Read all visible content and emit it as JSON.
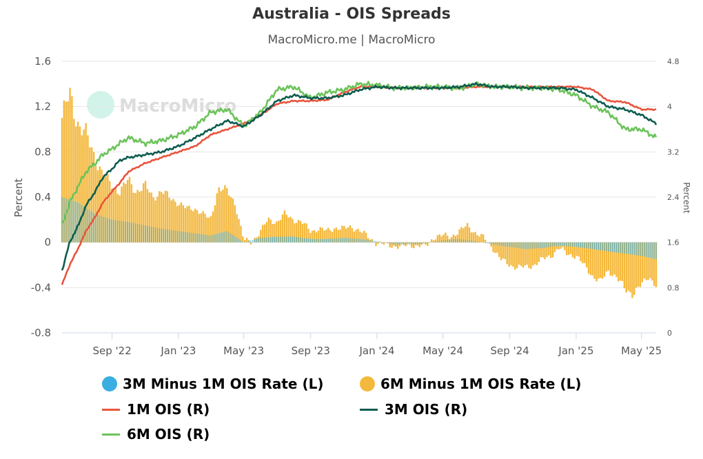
{
  "title": "Australia - OIS Spreads",
  "subtitle": "MacroMicro.me | MacroMicro",
  "watermark": "MacroMicro",
  "colors": {
    "spread3m": "#3aaee0",
    "spread6m": "#f4b83c",
    "ois1m": "#e8543c",
    "ois3m": "#0d5c4e",
    "ois6m": "#6cc35b",
    "grid": "#e6e6e6",
    "axis_text": "#555555"
  },
  "legend": {
    "spread3m": "3M Minus 1M OIS Rate (L)",
    "spread6m": "6M Minus 1M OIS Rate (L)",
    "ois1m": "1M OIS (R)",
    "ois3m": "3M OIS (R)",
    "ois6m": "6M OIS (R)"
  },
  "chart_data": {
    "type": "bar",
    "title": "Australia - OIS Spreads",
    "subtitle": "MacroMicro.me | MacroMicro",
    "ylabel_left": "Percent",
    "ylabel_right": "Percent",
    "ylim_left": [
      -0.8,
      1.6
    ],
    "ylim_right": [
      0,
      4.8
    ],
    "yticks_left": [
      "1.6",
      "1.2",
      "0.8",
      "0.4",
      "0",
      "-0.4",
      "-0.8"
    ],
    "yticks_right": [
      "4.8",
      "4",
      "3.2",
      "2.4",
      "1.6",
      "0.8",
      "0"
    ],
    "xticks": [
      "Sep '22",
      "Jan '23",
      "May '23",
      "Sep '23",
      "Jan '24",
      "May '24",
      "Sep '24",
      "Jan '25",
      "May '25"
    ],
    "x_range": [
      "2022-06-01",
      "2025-05-28"
    ],
    "grid": true,
    "legend_position": "bottom",
    "series": [
      {
        "name": "6M Minus 1M OIS Rate (L)",
        "type": "bar",
        "axis": "left",
        "dates": [
          "2022-06-01",
          "2022-06-15",
          "2022-07-01",
          "2022-07-15",
          "2022-08-01",
          "2022-08-15",
          "2022-09-01",
          "2022-09-15",
          "2022-10-01",
          "2022-10-15",
          "2022-11-01",
          "2022-11-15",
          "2022-12-01",
          "2022-12-15",
          "2023-01-01",
          "2023-01-15",
          "2023-02-01",
          "2023-02-15",
          "2023-03-01",
          "2023-03-15",
          "2023-04-01",
          "2023-04-15",
          "2023-05-01",
          "2023-05-15",
          "2023-06-01",
          "2023-06-15",
          "2023-07-01",
          "2023-07-15",
          "2023-08-01",
          "2023-08-15",
          "2023-09-01",
          "2023-09-15",
          "2023-10-01",
          "2023-10-15",
          "2023-11-01",
          "2023-11-15",
          "2023-12-01",
          "2023-12-15",
          "2024-01-01",
          "2024-01-15",
          "2024-02-01",
          "2024-02-15",
          "2024-03-01",
          "2024-03-15",
          "2024-04-01",
          "2024-04-15",
          "2024-05-01",
          "2024-05-15",
          "2024-06-01",
          "2024-06-15",
          "2024-07-01",
          "2024-07-15",
          "2024-08-01",
          "2024-08-15",
          "2024-09-01",
          "2024-09-15",
          "2024-10-01",
          "2024-10-15",
          "2024-11-01",
          "2024-11-15",
          "2024-12-01",
          "2024-12-15",
          "2025-01-01",
          "2025-01-15",
          "2025-02-01",
          "2025-02-15",
          "2025-03-01",
          "2025-03-15",
          "2025-04-01",
          "2025-04-15",
          "2025-05-01",
          "2025-05-15",
          "2025-05-28"
        ],
        "values": [
          1.1,
          1.3,
          1.05,
          0.95,
          0.75,
          0.6,
          0.5,
          0.45,
          0.55,
          0.45,
          0.5,
          0.4,
          0.45,
          0.4,
          0.35,
          0.3,
          0.3,
          0.25,
          0.2,
          0.48,
          0.45,
          0.35,
          0.02,
          0.0,
          0.1,
          0.2,
          0.18,
          0.25,
          0.2,
          0.18,
          0.1,
          0.12,
          0.1,
          0.13,
          0.12,
          0.14,
          0.1,
          0.05,
          -0.01,
          -0.02,
          -0.03,
          -0.04,
          -0.02,
          -0.03,
          -0.03,
          0.05,
          0.06,
          0.05,
          0.1,
          0.15,
          0.08,
          0.04,
          -0.05,
          -0.15,
          -0.2,
          -0.22,
          -0.22,
          -0.2,
          -0.15,
          -0.12,
          -0.05,
          -0.1,
          -0.12,
          -0.2,
          -0.3,
          -0.35,
          -0.25,
          -0.3,
          -0.42,
          -0.45,
          -0.38,
          -0.3,
          -0.38
        ]
      },
      {
        "name": "3M Minus 1M OIS Rate (L)",
        "type": "bar",
        "axis": "left",
        "dates": [
          "2022-06-01",
          "2022-07-01",
          "2022-08-01",
          "2022-09-01",
          "2022-10-01",
          "2022-11-01",
          "2022-12-01",
          "2023-01-01",
          "2023-02-01",
          "2023-03-01",
          "2023-04-01",
          "2023-05-01",
          "2023-06-01",
          "2023-07-01",
          "2023-08-01",
          "2023-09-01",
          "2023-10-01",
          "2023-11-01",
          "2023-12-01",
          "2024-01-01",
          "2024-02-01",
          "2024-03-01",
          "2024-04-01",
          "2024-05-01",
          "2024-06-01",
          "2024-07-01",
          "2024-08-01",
          "2024-09-01",
          "2024-10-01",
          "2024-11-01",
          "2024-12-01",
          "2025-01-01",
          "2025-02-01",
          "2025-03-01",
          "2025-04-01",
          "2025-05-01",
          "2025-05-28"
        ],
        "values": [
          0.4,
          0.35,
          0.25,
          0.2,
          0.18,
          0.15,
          0.12,
          0.1,
          0.08,
          0.06,
          0.1,
          0.0,
          0.04,
          0.05,
          0.05,
          0.03,
          0.03,
          0.04,
          0.03,
          0.01,
          -0.02,
          -0.02,
          -0.01,
          0.02,
          0.03,
          0.01,
          -0.02,
          -0.04,
          -0.06,
          -0.05,
          -0.03,
          -0.04,
          -0.06,
          -0.08,
          -0.1,
          -0.12,
          -0.15
        ]
      },
      {
        "name": "1M OIS (R)",
        "type": "line",
        "axis": "right",
        "dates": [
          "2022-06-01",
          "2022-06-15",
          "2022-07-01",
          "2022-07-15",
          "2022-08-01",
          "2022-08-15",
          "2022-09-01",
          "2022-09-15",
          "2022-10-01",
          "2022-11-01",
          "2022-12-01",
          "2023-01-01",
          "2023-02-01",
          "2023-03-01",
          "2023-04-01",
          "2023-05-01",
          "2023-06-01",
          "2023-07-01",
          "2023-08-01",
          "2023-09-01",
          "2023-10-01",
          "2023-11-01",
          "2023-12-01",
          "2024-01-01",
          "2024-02-01",
          "2024-03-01",
          "2024-04-01",
          "2024-05-01",
          "2024-06-01",
          "2024-07-01",
          "2024-08-01",
          "2024-09-01",
          "2024-10-01",
          "2024-11-01",
          "2024-12-01",
          "2025-01-01",
          "2025-02-01",
          "2025-03-01",
          "2025-04-01",
          "2025-05-01",
          "2025-05-28"
        ],
        "values": [
          0.85,
          1.2,
          1.5,
          1.8,
          2.05,
          2.3,
          2.5,
          2.65,
          2.85,
          3.0,
          3.1,
          3.2,
          3.3,
          3.5,
          3.6,
          3.7,
          3.85,
          4.05,
          4.1,
          4.1,
          4.12,
          4.25,
          4.35,
          4.35,
          4.33,
          4.33,
          4.33,
          4.33,
          4.33,
          4.35,
          4.35,
          4.35,
          4.35,
          4.35,
          4.35,
          4.35,
          4.3,
          4.1,
          4.08,
          3.95,
          3.95
        ]
      },
      {
        "name": "3M OIS (R)",
        "type": "line",
        "axis": "right",
        "dates": [
          "2022-06-01",
          "2022-06-15",
          "2022-07-01",
          "2022-07-15",
          "2022-08-01",
          "2022-08-15",
          "2022-09-01",
          "2022-09-15",
          "2022-10-01",
          "2022-11-01",
          "2022-12-01",
          "2023-01-01",
          "2023-02-01",
          "2023-03-01",
          "2023-04-01",
          "2023-05-01",
          "2023-06-01",
          "2023-07-01",
          "2023-08-01",
          "2023-09-01",
          "2023-10-01",
          "2023-11-01",
          "2023-12-01",
          "2024-01-01",
          "2024-02-01",
          "2024-03-01",
          "2024-04-01",
          "2024-05-01",
          "2024-06-01",
          "2024-07-01",
          "2024-08-01",
          "2024-09-01",
          "2024-10-01",
          "2024-11-01",
          "2024-12-01",
          "2025-01-01",
          "2025-02-01",
          "2025-03-01",
          "2025-04-01",
          "2025-05-01",
          "2025-05-28"
        ],
        "values": [
          1.1,
          1.6,
          1.9,
          2.25,
          2.5,
          2.75,
          2.9,
          3.05,
          3.1,
          3.15,
          3.2,
          3.3,
          3.45,
          3.6,
          3.75,
          3.65,
          3.85,
          4.1,
          4.2,
          4.15,
          4.15,
          4.2,
          4.3,
          4.35,
          4.33,
          4.33,
          4.33,
          4.33,
          4.35,
          4.4,
          4.35,
          4.35,
          4.33,
          4.33,
          4.33,
          4.3,
          4.15,
          4.0,
          3.95,
          3.85,
          3.7
        ]
      },
      {
        "name": "6M OIS (R)",
        "type": "line",
        "axis": "right",
        "dates": [
          "2022-06-01",
          "2022-06-15",
          "2022-07-01",
          "2022-07-15",
          "2022-08-01",
          "2022-08-15",
          "2022-09-01",
          "2022-09-15",
          "2022-10-01",
          "2022-11-01",
          "2022-12-01",
          "2023-01-01",
          "2023-02-01",
          "2023-03-01",
          "2023-04-01",
          "2023-05-01",
          "2023-06-01",
          "2023-07-01",
          "2023-08-01",
          "2023-09-01",
          "2023-10-01",
          "2023-11-01",
          "2023-12-01",
          "2024-01-01",
          "2024-02-01",
          "2024-03-01",
          "2024-04-01",
          "2024-05-01",
          "2024-06-01",
          "2024-07-01",
          "2024-08-01",
          "2024-09-01",
          "2024-10-01",
          "2024-11-01",
          "2024-12-01",
          "2025-01-01",
          "2025-02-01",
          "2025-03-01",
          "2025-04-01",
          "2025-05-01",
          "2025-05-28"
        ],
        "values": [
          1.9,
          2.3,
          2.6,
          2.85,
          3.0,
          3.15,
          3.25,
          3.35,
          3.45,
          3.35,
          3.4,
          3.5,
          3.65,
          3.9,
          3.95,
          3.65,
          3.9,
          4.3,
          4.35,
          4.15,
          4.25,
          4.3,
          4.4,
          4.38,
          4.33,
          4.33,
          4.35,
          4.35,
          4.32,
          4.4,
          4.35,
          4.35,
          4.33,
          4.33,
          4.3,
          4.2,
          4.0,
          3.9,
          3.6,
          3.6,
          3.45
        ]
      }
    ]
  }
}
